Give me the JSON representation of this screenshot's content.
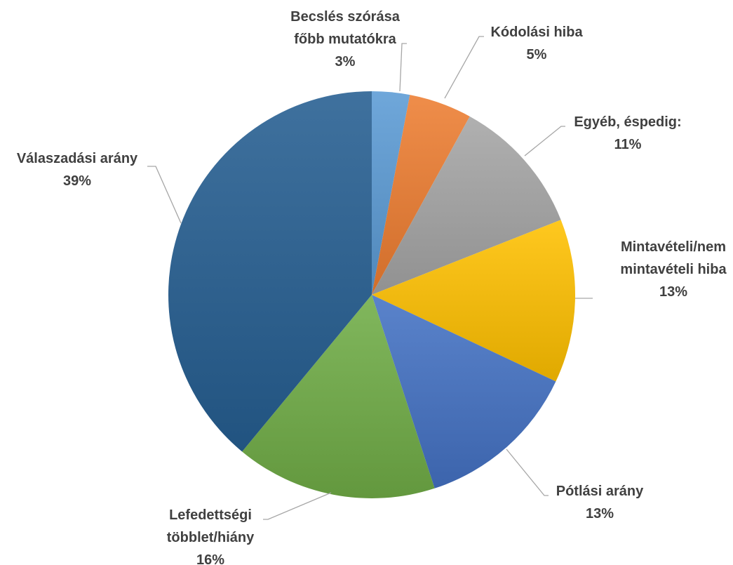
{
  "chart_data": {
    "type": "pie",
    "title": "",
    "slices": [
      {
        "lines": [
          "Becslés szórása",
          "főbb mutatókra"
        ],
        "value": 3,
        "value_label": "3%",
        "color": "#5b9bd5"
      },
      {
        "lines": [
          "Kódolási hiba"
        ],
        "value": 5,
        "value_label": "5%",
        "color": "#ed7d31"
      },
      {
        "lines": [
          "Egyéb, éspedig:"
        ],
        "value": 11,
        "value_label": "11%",
        "color": "#a5a5a5"
      },
      {
        "lines": [
          "Mintavételi/nem",
          "mintavételi hiba"
        ],
        "value": 13,
        "value_label": "13%",
        "color": "#ffc000"
      },
      {
        "lines": [
          "Pótlási arány"
        ],
        "value": 13,
        "value_label": "13%",
        "color": "#4472c4"
      },
      {
        "lines": [
          "Lefedettségi",
          "többlet/hiány"
        ],
        "value": 16,
        "value_label": "16%",
        "color": "#70ad47"
      },
      {
        "lines": [
          "Válaszadási arány"
        ],
        "value": 39,
        "value_label": "39%",
        "color": "#255e91"
      }
    ],
    "legend": "none",
    "data_labels": "outside with leader lines"
  }
}
